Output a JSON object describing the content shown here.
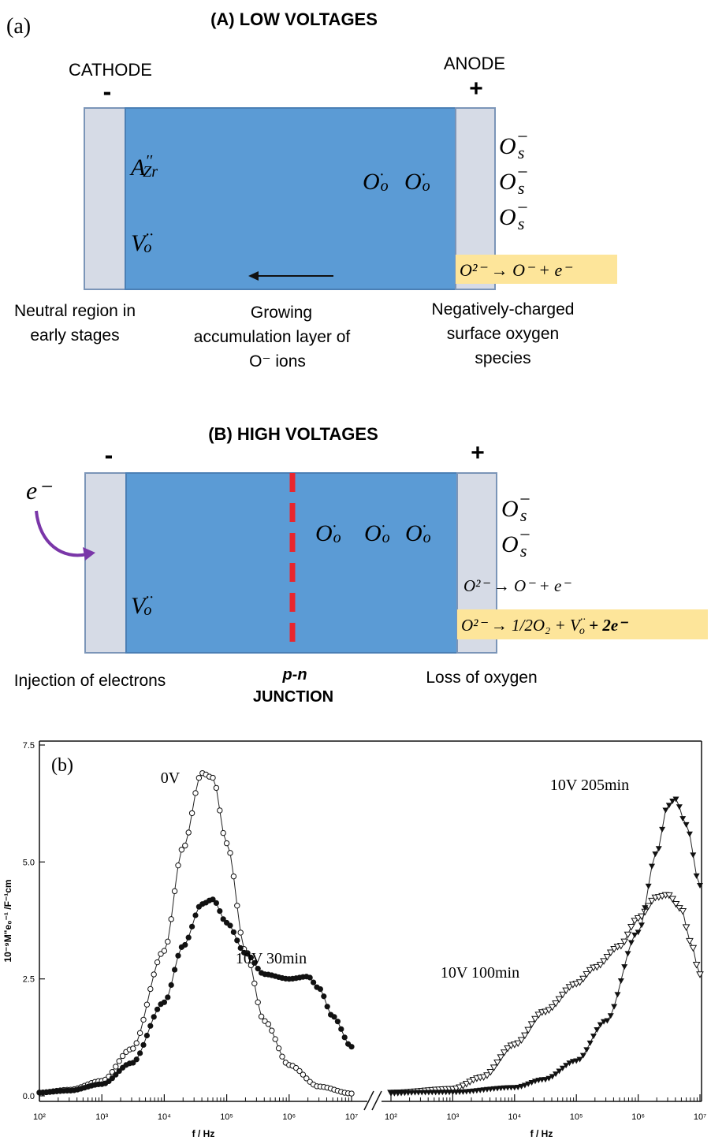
{
  "panel_a": {
    "label": "(a)",
    "title": "(A) LOW VOLTAGES",
    "cathode": "CATHODE",
    "anode": "ANODE",
    "minus": "-",
    "plus": "+",
    "defect_acceptor_base": "A",
    "defect_acceptor_sup": "′′",
    "defect_acceptor_sub": "Zr",
    "defect_vacancy_base": "V",
    "defect_vacancy_sup": "··",
    "defect_vacancy_sub": "o",
    "oo_base": "O",
    "oo_sup": "·",
    "oo_sub": "o",
    "os_base": "O",
    "os_sup": "−",
    "os_sub": "s",
    "reaction": "O²⁻ → O⁻ + e⁻",
    "caption_left": [
      "Neutral region in",
      "early stages"
    ],
    "caption_mid": [
      "Growing",
      "accumulation layer of",
      "O⁻ ions"
    ],
    "caption_right": [
      "Negatively-charged",
      "surface oxygen",
      "species"
    ]
  },
  "panel_b_diagram": {
    "title": "(B) HIGH VOLTAGES",
    "minus": "-",
    "plus": "+",
    "electron": "e⁻",
    "vacancy_base": "V",
    "vacancy_sup": "··",
    "vacancy_sub": "o",
    "reaction1": "O²⁻ → O⁻ + e⁻",
    "reaction2": "O²⁻ → 1/2O₂ + V",
    "reaction2_sup": "··",
    "reaction2_sub": "o",
    "reaction2_tail": " + 2e⁻",
    "caption_left": "Injection of electrons",
    "caption_mid_1": "p-n",
    "caption_mid_2": "JUNCTION",
    "caption_right": "Loss of oxygen",
    "colors": {
      "bulk": "#5b9bd5",
      "electrode": "#d6dbe6",
      "junction": "#e8262e",
      "arrow": "#7a36a8",
      "highlight": "#fde59a"
    }
  },
  "chart_data": {
    "type": "line",
    "panel_label": "(b)",
    "ylabel": "10⁻⁹M\"e₀⁻¹ /F⁻¹cm",
    "xlabel": "f / Hz",
    "xscale": "log",
    "ylim": [
      0,
      7.5
    ],
    "yticks": [
      "0.0",
      "2.5",
      "5.0",
      "7.5"
    ],
    "xticks": [
      "10²",
      "10³",
      "10⁴",
      "10⁵",
      "10⁶",
      "10⁷"
    ],
    "left_panel": {
      "xlim": [
        100,
        10000000
      ],
      "series": [
        {
          "name": "0V",
          "marker": "open-circle",
          "points": [
            [
              100,
              0.07
            ],
            [
              300,
              0.13
            ],
            [
              1000,
              0.32
            ],
            [
              3000,
              1.0
            ],
            [
              10000,
              3.1
            ],
            [
              20000,
              5.3
            ],
            [
              40000,
              6.9
            ],
            [
              60000,
              6.8
            ],
            [
              100000,
              5.4
            ],
            [
              200000,
              3.1
            ],
            [
              400000,
              1.6
            ],
            [
              1000000,
              0.66
            ],
            [
              3000000,
              0.2
            ],
            [
              10000000,
              0.05
            ]
          ]
        },
        {
          "name": "10V 30min",
          "marker": "filled-circle",
          "points": [
            [
              100,
              0.07
            ],
            [
              300,
              0.11
            ],
            [
              1000,
              0.25
            ],
            [
              3000,
              0.7
            ],
            [
              10000,
              2.0
            ],
            [
              20000,
              3.2
            ],
            [
              40000,
              4.1
            ],
            [
              60000,
              4.2
            ],
            [
              100000,
              3.7
            ],
            [
              200000,
              3.05
            ],
            [
              400000,
              2.6
            ],
            [
              1000000,
              2.5
            ],
            [
              2000000,
              2.55
            ],
            [
              3000000,
              2.3
            ],
            [
              5000000,
              1.7
            ],
            [
              10000000,
              1.05
            ]
          ]
        }
      ]
    },
    "right_panel": {
      "xlim": [
        100,
        10000000
      ],
      "series": [
        {
          "name": "10V 100min",
          "marker": "open-triangle-down",
          "points": [
            [
              100,
              0.07
            ],
            [
              1000,
              0.15
            ],
            [
              3000,
              0.4
            ],
            [
              10000,
              1.1
            ],
            [
              30000,
              1.8
            ],
            [
              100000,
              2.4
            ],
            [
              200000,
              2.75
            ],
            [
              500000,
              3.2
            ],
            [
              1000000,
              3.8
            ],
            [
              2000000,
              4.25
            ],
            [
              3000000,
              4.3
            ],
            [
              5000000,
              4.0
            ],
            [
              7000000,
              3.3
            ],
            [
              10000000,
              2.6
            ]
          ]
        },
        {
          "name": "10V 205min",
          "marker": "filled-triangle-down",
          "points": [
            [
              100,
              0.07
            ],
            [
              1000,
              0.08
            ],
            [
              10000,
              0.18
            ],
            [
              30000,
              0.35
            ],
            [
              100000,
              0.75
            ],
            [
              300000,
              1.6
            ],
            [
              1000000,
              3.5
            ],
            [
              2000000,
              5.2
            ],
            [
              3000000,
              6.2
            ],
            [
              4000000,
              6.35
            ],
            [
              6000000,
              5.8
            ],
            [
              10000000,
              4.5
            ]
          ]
        }
      ]
    }
  }
}
